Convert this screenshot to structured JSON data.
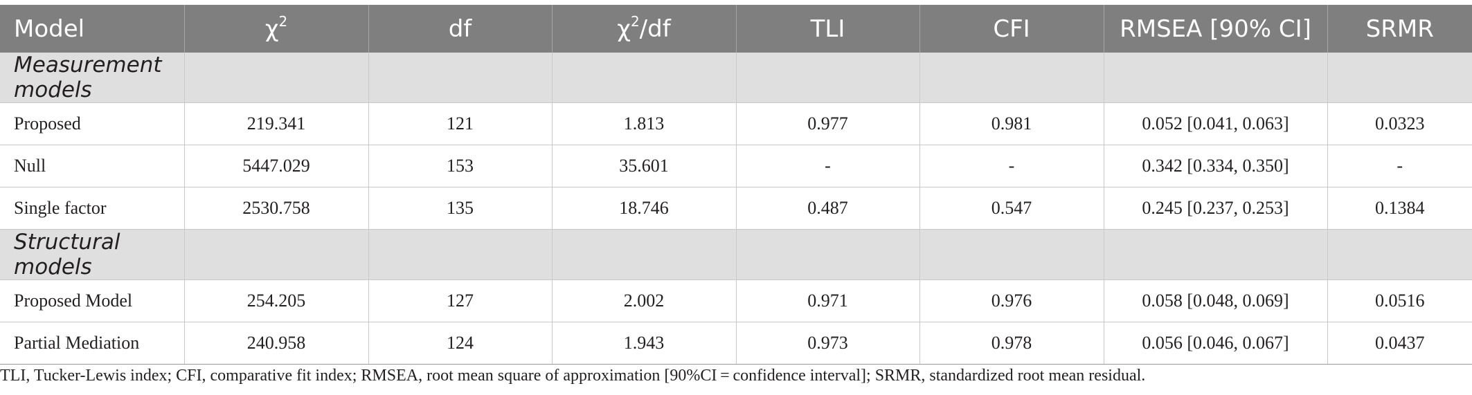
{
  "table": {
    "headers": [
      "Model",
      "χ",
      "df",
      "χ",
      "TLI",
      "CFI",
      "RMSEA [90% CI]",
      "SRMR"
    ],
    "header_sup": {
      "chi2": "2",
      "chi2df": "2"
    },
    "header_suffix": {
      "chi2df": "/df"
    },
    "sections": [
      {
        "title": "Measurement models",
        "rows": [
          [
            "Proposed",
            "219.341",
            "121",
            "1.813",
            "0.977",
            "0.981",
            "0.052 [0.041, 0.063]",
            "0.0323"
          ],
          [
            "Null",
            "5447.029",
            "153",
            "35.601",
            "-",
            "-",
            "0.342 [0.334, 0.350]",
            "-"
          ],
          [
            "Single factor",
            "2530.758",
            "135",
            "18.746",
            "0.487",
            "0.547",
            "0.245 [0.237, 0.253]",
            "0.1384"
          ]
        ]
      },
      {
        "title": "Structural models",
        "rows": [
          [
            "Proposed Model",
            "254.205",
            "127",
            "2.002",
            "0.971",
            "0.976",
            "0.058 [0.048, 0.069]",
            "0.0516"
          ],
          [
            "Partial Mediation",
            "240.958",
            "124",
            "1.943",
            "0.973",
            "0.978",
            "0.056 [0.046, 0.067]",
            "0.0437"
          ]
        ]
      }
    ]
  },
  "footnote": "TLI, Tucker-Lewis index; CFI, comparative fit index; RMSEA, root mean square of approximation [90%CI = confidence interval]; SRMR, standardized root mean residual.",
  "colors": {
    "header_bg": "#7f7f80",
    "section_bg": "#e0dfe0",
    "text": "#231f20",
    "grid": "#c9c9c9"
  }
}
